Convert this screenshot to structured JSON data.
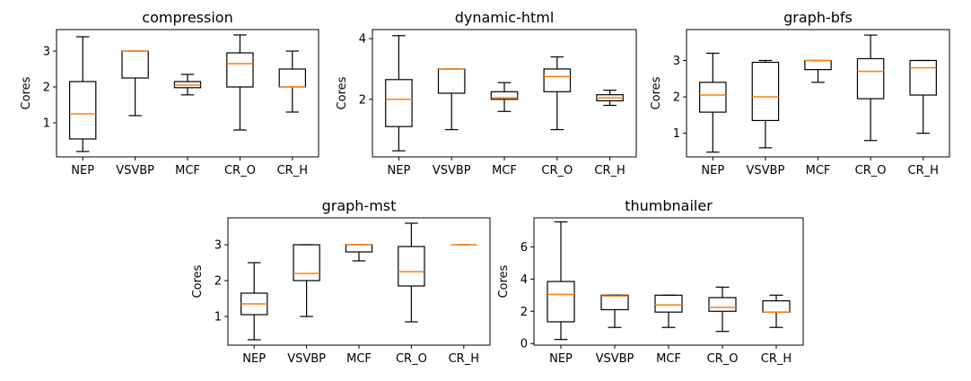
{
  "colors": {
    "box": "#000000",
    "median": "#ff7f0e",
    "background": "#ffffff"
  },
  "chart_data": [
    {
      "type": "box",
      "title": "compression",
      "ylabel": "Cores",
      "categories": [
        "NEP",
        "VSVBP",
        "MCF",
        "CR_O",
        "CR_H"
      ],
      "ylim": [
        0.05,
        3.6
      ],
      "yticks": [
        1,
        2,
        3
      ],
      "boxes": [
        {
          "whislo": 0.2,
          "q1": 0.55,
          "med": 1.25,
          "q3": 2.15,
          "whishi": 3.4
        },
        {
          "whislo": 1.2,
          "q1": 2.25,
          "med": 3.0,
          "q3": 3.0,
          "whishi": 3.0
        },
        {
          "whislo": 1.78,
          "q1": 1.98,
          "med": 2.05,
          "q3": 2.15,
          "whishi": 2.35
        },
        {
          "whislo": 0.8,
          "q1": 2.0,
          "med": 2.65,
          "q3": 2.95,
          "whishi": 3.45
        },
        {
          "whislo": 1.3,
          "q1": 2.0,
          "med": 2.0,
          "q3": 2.5,
          "whishi": 3.0
        }
      ]
    },
    {
      "type": "box",
      "title": "dynamic-html",
      "ylabel": "Cores",
      "categories": [
        "NEP",
        "VSVBP",
        "MCF",
        "CR_O",
        "CR_H"
      ],
      "ylim": [
        0.1,
        4.3
      ],
      "yticks": [
        2,
        4
      ],
      "boxes": [
        {
          "whislo": 0.3,
          "q1": 1.1,
          "med": 2.0,
          "q3": 2.65,
          "whishi": 4.1
        },
        {
          "whislo": 1.0,
          "q1": 2.2,
          "med": 3.0,
          "q3": 3.0,
          "whishi": 3.0
        },
        {
          "whislo": 1.6,
          "q1": 2.0,
          "med": 2.05,
          "q3": 2.25,
          "whishi": 2.55
        },
        {
          "whislo": 1.0,
          "q1": 2.25,
          "med": 2.75,
          "q3": 3.0,
          "whishi": 3.4
        },
        {
          "whislo": 1.8,
          "q1": 1.95,
          "med": 2.05,
          "q3": 2.15,
          "whishi": 2.3
        }
      ]
    },
    {
      "type": "box",
      "title": "graph-bfs",
      "ylabel": "Cores",
      "categories": [
        "NEP",
        "VSVBP",
        "MCF",
        "CR_O",
        "CR_H"
      ],
      "ylim": [
        0.35,
        3.85
      ],
      "yticks": [
        1,
        2,
        3
      ],
      "boxes": [
        {
          "whislo": 0.48,
          "q1": 1.58,
          "med": 2.05,
          "q3": 2.4,
          "whishi": 3.2
        },
        {
          "whislo": 0.6,
          "q1": 1.35,
          "med": 2.0,
          "q3": 2.95,
          "whishi": 3.0
        },
        {
          "whislo": 2.4,
          "q1": 2.75,
          "med": 3.0,
          "q3": 3.0,
          "whishi": 3.0
        },
        {
          "whislo": 0.8,
          "q1": 1.95,
          "med": 2.7,
          "q3": 3.05,
          "whishi": 3.7
        },
        {
          "whislo": 1.0,
          "q1": 2.05,
          "med": 2.8,
          "q3": 3.0,
          "whishi": 3.0
        }
      ]
    },
    {
      "type": "box",
      "title": "graph-mst",
      "ylabel": "Cores",
      "categories": [
        "NEP",
        "VSVBP",
        "MCF",
        "CR_O",
        "CR_H"
      ],
      "ylim": [
        0.2,
        3.75
      ],
      "yticks": [
        1,
        2,
        3
      ],
      "boxes": [
        {
          "whislo": 0.35,
          "q1": 1.05,
          "med": 1.35,
          "q3": 1.65,
          "whishi": 2.5
        },
        {
          "whislo": 1.0,
          "q1": 2.0,
          "med": 2.2,
          "q3": 3.0,
          "whishi": 3.0
        },
        {
          "whislo": 2.55,
          "q1": 2.8,
          "med": 3.0,
          "q3": 3.0,
          "whishi": 3.0
        },
        {
          "whislo": 0.85,
          "q1": 1.85,
          "med": 2.25,
          "q3": 2.95,
          "whishi": 3.6
        },
        {
          "whislo": 3.0,
          "q1": 3.0,
          "med": 3.0,
          "q3": 3.0,
          "whishi": 3.0
        }
      ]
    },
    {
      "type": "box",
      "title": "thumbnailer",
      "ylabel": "Cores",
      "categories": [
        "NEP",
        "VSVBP",
        "MCF",
        "CR_O",
        "CR_H"
      ],
      "ylim": [
        -0.1,
        7.8
      ],
      "yticks": [
        0,
        2,
        4,
        6
      ],
      "boxes": [
        {
          "whislo": 0.25,
          "q1": 1.35,
          "med": 3.05,
          "q3": 3.85,
          "whishi": 7.55
        },
        {
          "whislo": 1.0,
          "q1": 2.1,
          "med": 2.95,
          "q3": 3.0,
          "whishi": 3.0
        },
        {
          "whislo": 1.0,
          "q1": 1.95,
          "med": 2.4,
          "q3": 3.0,
          "whishi": 3.0
        },
        {
          "whislo": 0.75,
          "q1": 2.0,
          "med": 2.25,
          "q3": 2.85,
          "whishi": 3.5
        },
        {
          "whislo": 1.0,
          "q1": 1.95,
          "med": 1.95,
          "q3": 2.65,
          "whishi": 3.0
        }
      ]
    }
  ]
}
